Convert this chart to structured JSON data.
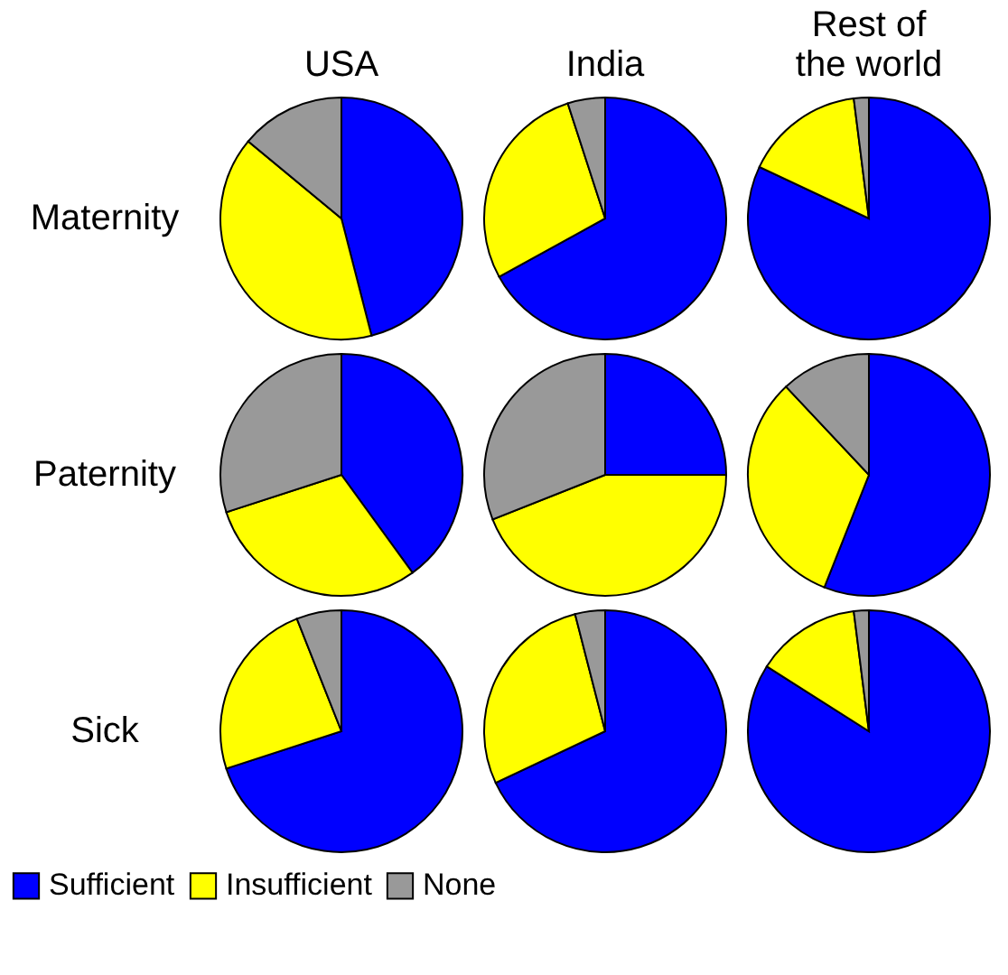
{
  "chart_data": [
    {
      "type": "pie",
      "title": "USA",
      "ylabel": "Maternity",
      "categories": [
        "Sufficient",
        "Insufficient",
        "None"
      ],
      "values": [
        46,
        40,
        14
      ],
      "colors": [
        "#0000ff",
        "#ffff00",
        "#999999"
      ],
      "legend": "bottom"
    },
    {
      "type": "pie",
      "title": "India",
      "categories": [
        null,
        null,
        null
      ],
      "values": [
        67,
        28,
        5
      ],
      "colors": [
        "#0000ff",
        "#ffff00",
        "#999999"
      ]
    },
    {
      "type": "pie",
      "title": "Rest of the world",
      "categories": [
        null,
        null,
        null
      ],
      "values": [
        82,
        16,
        2
      ],
      "colors": [
        "#0000ff",
        "#ffff00",
        "#999999"
      ]
    },
    {
      "type": "pie",
      "ylabel": "Paternity",
      "categories": [
        null,
        null,
        null
      ],
      "values": [
        40,
        30,
        30
      ],
      "colors": [
        "#0000ff",
        "#ffff00",
        "#999999"
      ]
    },
    {
      "type": "pie",
      "categories": [
        null,
        null,
        null
      ],
      "values": [
        25,
        44,
        31
      ],
      "colors": [
        "#0000ff",
        "#ffff00",
        "#999999"
      ]
    },
    {
      "type": "pie",
      "categories": [
        null,
        null,
        null
      ],
      "values": [
        56,
        32,
        12
      ],
      "colors": [
        "#0000ff",
        "#ffff00",
        "#999999"
      ]
    },
    {
      "type": "pie",
      "ylabel": "Sick",
      "categories": [
        null,
        null,
        null
      ],
      "values": [
        70,
        24,
        6
      ],
      "colors": [
        "#0000ff",
        "#ffff00",
        "#999999"
      ]
    },
    {
      "type": "pie",
      "categories": [
        null,
        null,
        null
      ],
      "values": [
        68,
        28,
        4
      ],
      "colors": [
        "#0000ff",
        "#ffff00",
        "#999999"
      ]
    },
    {
      "type": "pie",
      "categories": [
        null,
        null,
        null
      ],
      "values": [
        84,
        14,
        2
      ],
      "colors": [
        "#0000ff",
        "#ffff00",
        "#999999"
      ]
    }
  ]
}
